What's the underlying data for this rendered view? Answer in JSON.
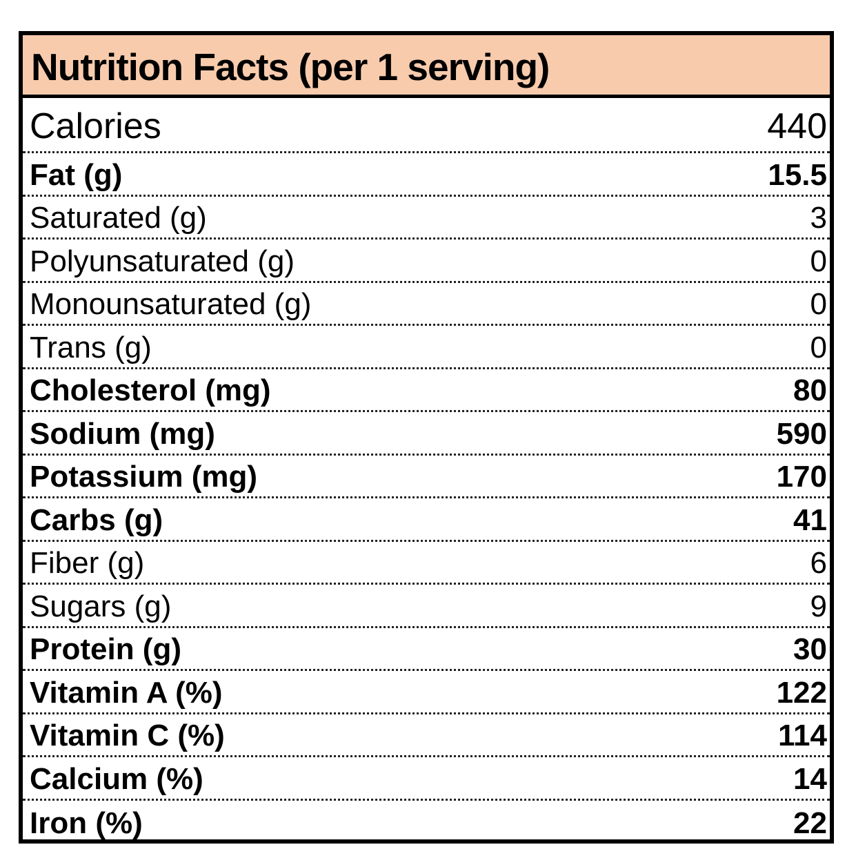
{
  "title": "Nutrition Facts (per 1 serving)",
  "colors": {
    "header_background": "#f8cbad",
    "border": "#000000"
  },
  "rows": [
    {
      "label": "Calories",
      "value": "440",
      "bold": false
    },
    {
      "label": "Fat (g)",
      "value": "15.5",
      "bold": true
    },
    {
      "label": "Saturated (g)",
      "value": "3",
      "bold": false
    },
    {
      "label": "Polyunsaturated (g)",
      "value": "0",
      "bold": false
    },
    {
      "label": "Monounsaturated (g)",
      "value": "0",
      "bold": false
    },
    {
      "label": "Trans (g)",
      "value": "0",
      "bold": false
    },
    {
      "label": "Cholesterol (mg)",
      "value": "80",
      "bold": true
    },
    {
      "label": "Sodium (mg)",
      "value": "590",
      "bold": true
    },
    {
      "label": "Potassium (mg)",
      "value": "170",
      "bold": true
    },
    {
      "label": "Carbs (g)",
      "value": "41",
      "bold": true
    },
    {
      "label": "Fiber (g)",
      "value": "6",
      "bold": false
    },
    {
      "label": "Sugars (g)",
      "value": "9",
      "bold": false
    },
    {
      "label": "Protein (g)",
      "value": "30",
      "bold": true
    },
    {
      "label": "Vitamin A (%)",
      "value": "122",
      "bold": true
    },
    {
      "label": "Vitamin C (%)",
      "value": "114",
      "bold": true
    },
    {
      "label": "Calcium (%)",
      "value": "14",
      "bold": true
    },
    {
      "label": "Iron (%)",
      "value": "22",
      "bold": true
    }
  ]
}
